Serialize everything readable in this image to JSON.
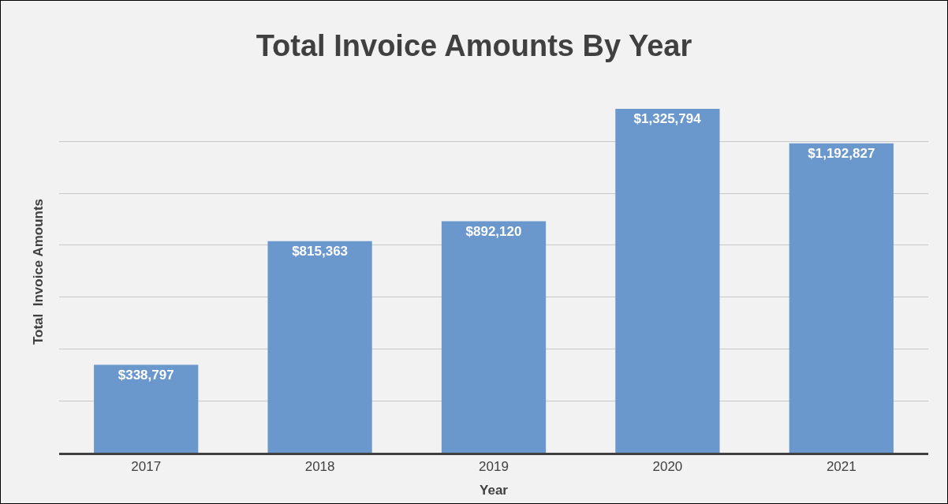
{
  "chart_data": {
    "type": "bar",
    "title": "Total Invoice Amounts By Year",
    "xlabel": "Year",
    "ylabel": "Total  Invoice Amounts",
    "categories": [
      "2017",
      "2018",
      "2019",
      "2020",
      "2021"
    ],
    "values": [
      338797,
      815363,
      892120,
      1325794,
      1192827
    ],
    "value_labels": [
      "$338,797",
      "$815,363",
      "$892,120",
      "$1,325,794",
      "$1,192,827"
    ],
    "color": "#6a97cc",
    "grid": "y",
    "legend": false,
    "tick_labels": "x"
  }
}
